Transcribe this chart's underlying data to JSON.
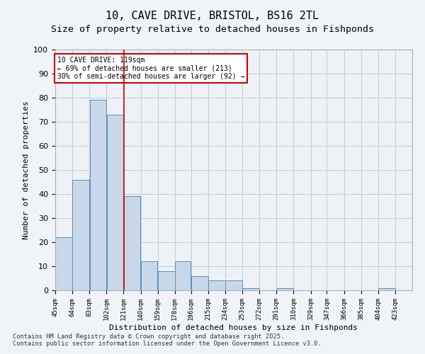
{
  "title_line1": "10, CAVE DRIVE, BRISTOL, BS16 2TL",
  "title_line2": "Size of property relative to detached houses in Fishponds",
  "xlabel": "Distribution of detached houses by size in Fishponds",
  "ylabel": "Number of detached properties",
  "bar_left_edges": [
    45,
    64,
    83,
    102,
    121,
    140,
    159,
    178,
    196,
    215,
    234,
    253,
    272,
    291,
    310,
    329,
    347,
    366,
    385,
    404
  ],
  "bar_widths": [
    19,
    19,
    19,
    19,
    19,
    19,
    19,
    18,
    19,
    19,
    19,
    19,
    19,
    19,
    19,
    18,
    19,
    19,
    19,
    19
  ],
  "bar_heights": [
    22,
    46,
    79,
    73,
    39,
    12,
    8,
    12,
    6,
    4,
    4,
    1,
    0,
    1,
    0,
    0,
    0,
    0,
    0,
    1
  ],
  "bar_color": "#c8d8e8",
  "bar_edge_color": "#5b8db8",
  "tick_labels": [
    "45sqm",
    "64sqm",
    "83sqm",
    "102sqm",
    "121sqm",
    "140sqm",
    "159sqm",
    "178sqm",
    "196sqm",
    "215sqm",
    "234sqm",
    "253sqm",
    "272sqm",
    "291sqm",
    "310sqm",
    "329sqm",
    "347sqm",
    "366sqm",
    "385sqm",
    "404sqm",
    "423sqm"
  ],
  "vline_x": 121,
  "vline_color": "#cc0000",
  "annotation_text": "10 CAVE DRIVE: 119sqm\n← 69% of detached houses are smaller (213)\n30% of semi-detached houses are larger (92) →",
  "annotation_box_color": "#ffffff",
  "annotation_border_color": "#cc0000",
  "ylim": [
    0,
    100
  ],
  "yticks": [
    0,
    10,
    20,
    30,
    40,
    50,
    60,
    70,
    80,
    90,
    100
  ],
  "grid_color": "#c0ccd8",
  "bg_color": "#eef2f7",
  "footer_line1": "Contains HM Land Registry data © Crown copyright and database right 2025.",
  "footer_line2": "Contains public sector information licensed under the Open Government Licence v3.0."
}
